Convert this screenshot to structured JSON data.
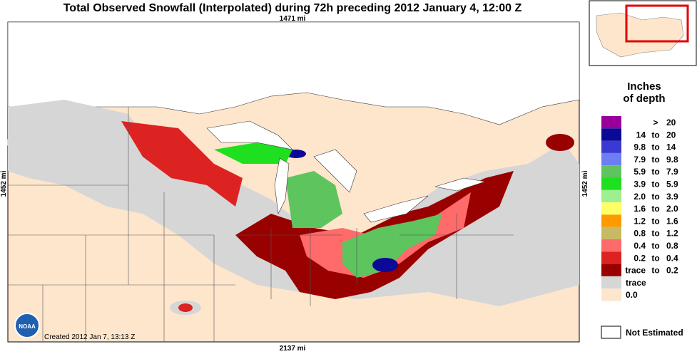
{
  "header": {
    "title": "Total Observed Snowfall (Interpolated) during 72h preceding 2012 January 4, 12:00 Z"
  },
  "map": {
    "top_label": "1471 mi",
    "bottom_label": "2137 mi",
    "left_label": "1452 mi",
    "right_label": "1452 mi",
    "created": "Created 2012 Jan 7, 13:13 Z",
    "logo": "NOAA"
  },
  "legend": {
    "title": "Inches\nof depth",
    "items": [
      {
        "color": "#990099",
        "sep": ">",
        "high": "20"
      },
      {
        "color": "#0a0a96",
        "low": "14",
        "sep": "to",
        "high": "20"
      },
      {
        "color": "#3a3ad2",
        "low": "9.8",
        "sep": "to",
        "high": "14"
      },
      {
        "color": "#6c7ef2",
        "low": "7.9",
        "sep": "to",
        "high": "9.8"
      },
      {
        "color": "#5ec45e",
        "low": "5.9",
        "sep": "to",
        "high": "7.9"
      },
      {
        "color": "#1ee01e",
        "low": "3.9",
        "sep": "to",
        "high": "5.9"
      },
      {
        "color": "#9ef08e",
        "low": "2.0",
        "sep": "to",
        "high": "3.9"
      },
      {
        "color": "#ffff66",
        "low": "1.6",
        "sep": "to",
        "high": "2.0"
      },
      {
        "color": "#ff9900",
        "low": "1.2",
        "sep": "to",
        "high": "1.6"
      },
      {
        "color": "#c8ba64",
        "low": "0.8",
        "sep": "to",
        "high": "1.2"
      },
      {
        "color": "#ff6a6a",
        "low": "0.4",
        "sep": "to",
        "high": "0.8"
      },
      {
        "color": "#dd2222",
        "low": "0.2",
        "sep": "to",
        "high": "0.4"
      },
      {
        "color": "#990000",
        "low": "trace",
        "sep": "to",
        "high": "0.2"
      },
      {
        "color": "#d6d6d6",
        "label": "trace"
      },
      {
        "color": "#fde6cc",
        "label": "0.0"
      }
    ],
    "not_estimated": "Not Estimated"
  }
}
